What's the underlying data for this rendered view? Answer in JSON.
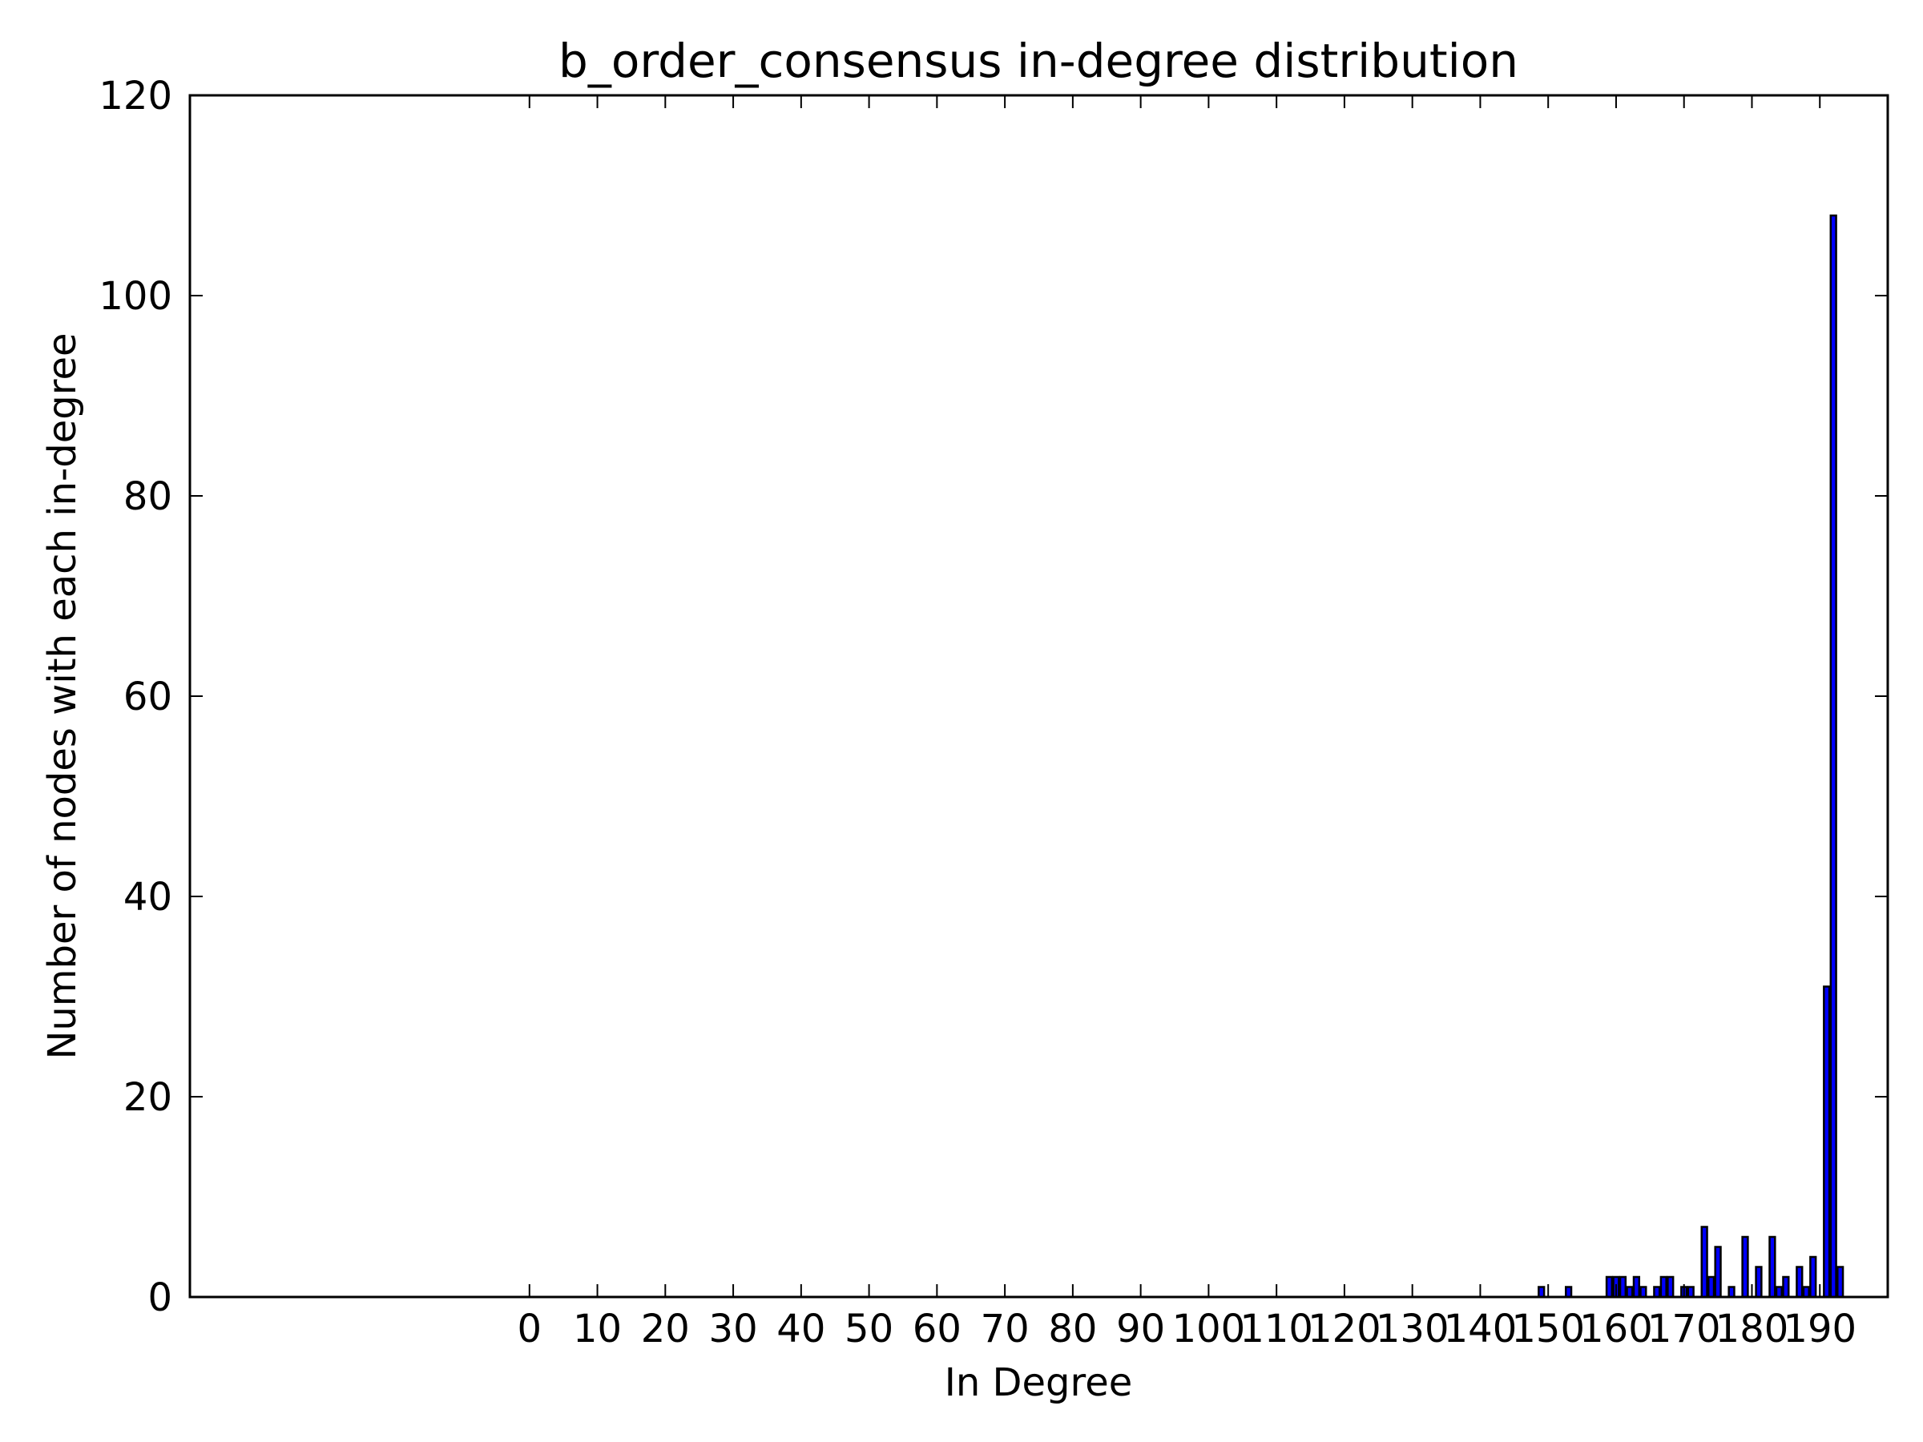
{
  "chart_data": {
    "type": "bar",
    "title": "b_order_consensus in-degree distribution",
    "xlabel": "In Degree",
    "ylabel": "Number of nodes with each in-degree",
    "xlim": [
      -50,
      200
    ],
    "ylim": [
      0,
      120
    ],
    "xticks": [
      "0",
      "10",
      "20",
      "30",
      "40",
      "50",
      "60",
      "70",
      "80",
      "90",
      "100",
      "110",
      "120",
      "130",
      "140",
      "150",
      "160",
      "170",
      "180",
      "190"
    ],
    "xtick_values": [
      0,
      10,
      20,
      30,
      40,
      50,
      60,
      70,
      80,
      90,
      100,
      110,
      120,
      130,
      140,
      150,
      160,
      170,
      180,
      190
    ],
    "yticks": [
      "0",
      "20",
      "40",
      "60",
      "80",
      "100",
      "120"
    ],
    "ytick_values": [
      0,
      20,
      40,
      60,
      80,
      100,
      120
    ],
    "bar_width": 0.8,
    "bar_color": "#0000ff",
    "grid": false,
    "legend": "none",
    "x": [
      149,
      153,
      159,
      160,
      161,
      162,
      163,
      164,
      166,
      167,
      168,
      170,
      171,
      173,
      174,
      175,
      177,
      179,
      181,
      183,
      184,
      185,
      187,
      188,
      189,
      191,
      192,
      193
    ],
    "values": [
      1,
      1,
      2,
      2,
      2,
      1,
      2,
      1,
      1,
      2,
      2,
      1,
      1,
      7,
      2,
      5,
      1,
      6,
      3,
      6,
      1,
      2,
      3,
      1,
      4,
      31,
      108,
      3
    ]
  }
}
